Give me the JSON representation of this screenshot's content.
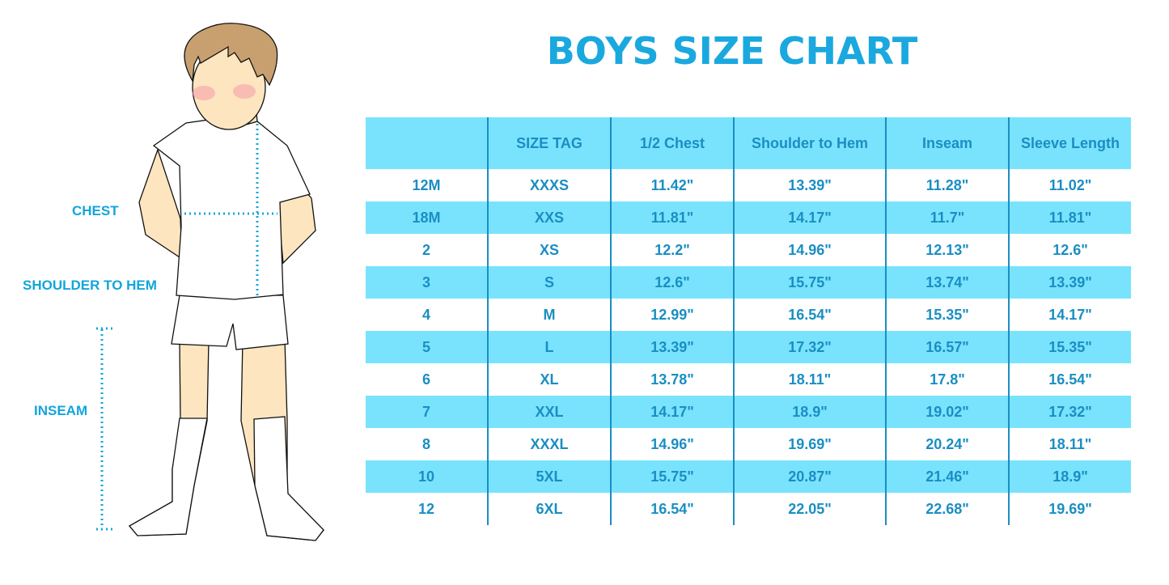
{
  "title": "BOYS SIZE CHART",
  "labels": {
    "chest": "CHEST",
    "shoulder_to_hem": "SHOULDER TO HEM",
    "inseam": "INSEAM"
  },
  "colors": {
    "accent": "#1aa8df",
    "table_text": "#1a8ec3",
    "row_highlight": "#79e3fd",
    "hair": "#c8a070",
    "skin": "#fde5c0"
  },
  "table": {
    "headers": [
      "",
      "SIZE TAG",
      "1/2 Chest",
      "Shoulder to Hem",
      "Inseam",
      "Sleeve Length"
    ],
    "rows": [
      [
        "12M",
        "XXXS",
        "11.42\"",
        "13.39\"",
        "11.28\"",
        "11.02\""
      ],
      [
        "18M",
        "XXS",
        "11.81\"",
        "14.17\"",
        "11.7\"",
        "11.81\""
      ],
      [
        "2",
        "XS",
        "12.2\"",
        "14.96\"",
        "12.13\"",
        "12.6\""
      ],
      [
        "3",
        "S",
        "12.6\"",
        "15.75\"",
        "13.74\"",
        "13.39\""
      ],
      [
        "4",
        "M",
        "12.99\"",
        "16.54\"",
        "15.35\"",
        "14.17\""
      ],
      [
        "5",
        "L",
        "13.39\"",
        "17.32\"",
        "16.57\"",
        "15.35\""
      ],
      [
        "6",
        "XL",
        "13.78\"",
        "18.11\"",
        "17.8\"",
        "16.54\""
      ],
      [
        "7",
        "XXL",
        "14.17\"",
        "18.9\"",
        "19.02\"",
        "17.32\""
      ],
      [
        "8",
        "XXXL",
        "14.96\"",
        "19.69\"",
        "20.24\"",
        "18.11\""
      ],
      [
        "10",
        "5XL",
        "15.75\"",
        "20.87\"",
        "21.46\"",
        "18.9\""
      ],
      [
        "12",
        "6XL",
        "16.54\"",
        "22.05\"",
        "22.68\"",
        "19.69\""
      ]
    ]
  }
}
